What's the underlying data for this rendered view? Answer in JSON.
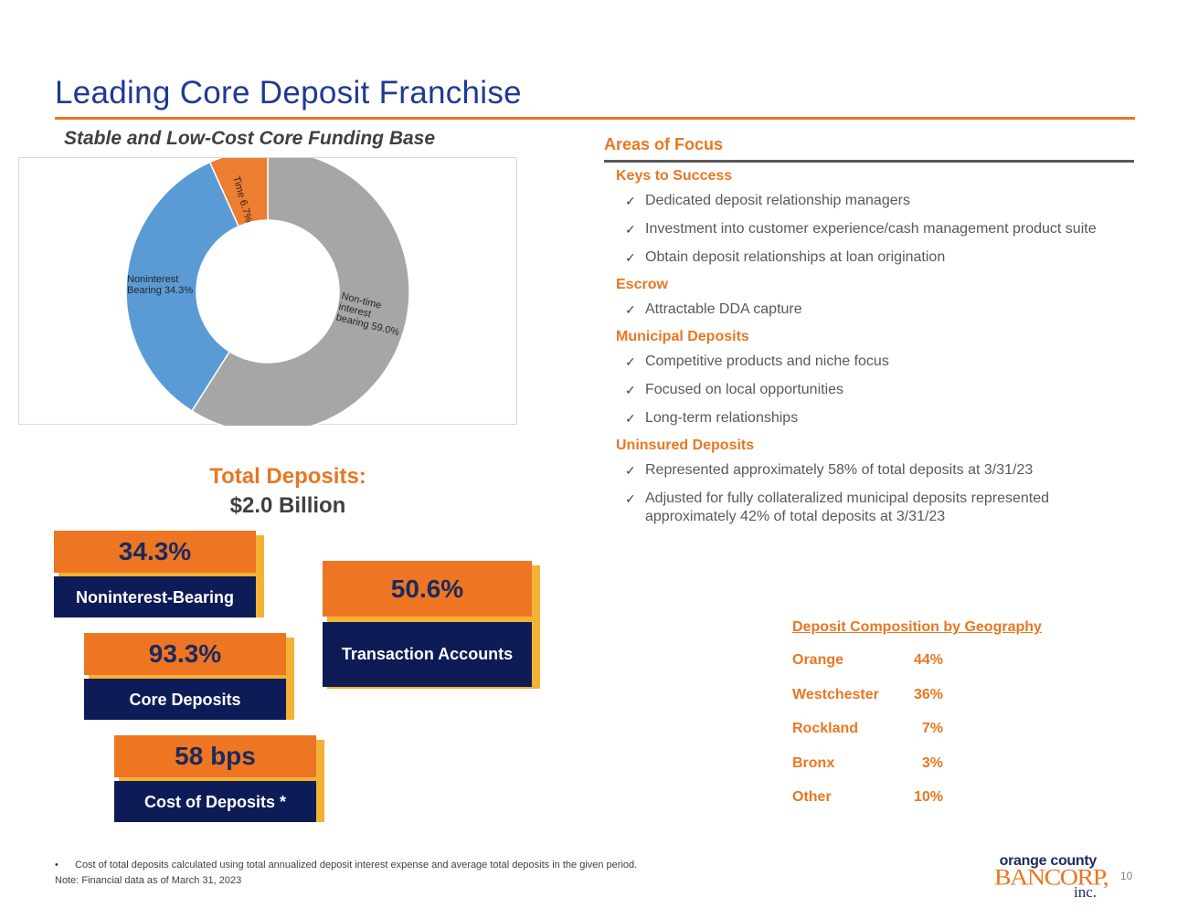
{
  "title": "Leading Core Deposit Franchise",
  "subtitle": "Stable and Low-Cost Core Funding Base",
  "colors": {
    "accent": "#e87722",
    "navy": "#0d1b56",
    "title_blue": "#1f3a93",
    "shadow_gold": "#f2b233",
    "slice_gray": "#a6a6a6",
    "slice_blue": "#5b9bd5",
    "slice_orange": "#ed7d31"
  },
  "chart_data": {
    "type": "pie",
    "variant": "donut",
    "series": [
      {
        "name": "Non-time interest bearing",
        "value": 59.0,
        "label_lines": [
          "Non-time",
          "interest",
          "bearing 59.0%"
        ],
        "color": "#a6a6a6"
      },
      {
        "name": "Noninterest Bearing",
        "value": 34.3,
        "label_lines": [
          "Noninterest",
          "Bearing 34.3%"
        ],
        "color": "#5b9bd5"
      },
      {
        "name": "Time",
        "value": 6.7,
        "label_lines": [
          "Time 6.7%"
        ],
        "color": "#ed7d31"
      }
    ]
  },
  "total": {
    "label": "Total Deposits:",
    "value": "$2.0 Billion"
  },
  "stats": [
    {
      "value": "34.3%",
      "label": "Noninterest-Bearing"
    },
    {
      "value": "93.3%",
      "label": "Core Deposits"
    },
    {
      "value": "58 bps",
      "label": "Cost of Deposits *"
    },
    {
      "value": "50.6%",
      "label": "Transaction Accounts"
    }
  ],
  "areas": {
    "title": "Areas of Focus",
    "check_glyph": "✓",
    "sections": [
      {
        "heading": "Keys to Success",
        "items": [
          "Dedicated deposit relationship managers",
          "Investment into customer experience/cash management product suite",
          "Obtain deposit relationships at loan origination"
        ]
      },
      {
        "heading": "Escrow",
        "items": [
          "Attractable DDA capture"
        ]
      },
      {
        "heading": "Municipal Deposits",
        "items": [
          "Competitive products and niche focus",
          "Focused on local opportunities",
          "Long-term relationships"
        ]
      },
      {
        "heading": "Uninsured Deposits",
        "items": [
          "Represented approximately 58% of total deposits at 3/31/23",
          "Adjusted for fully collateralized municipal deposits represented approximately 42% of total deposits at 3/31/23"
        ]
      }
    ]
  },
  "geography": {
    "title": "Deposit Composition by Geography",
    "rows": [
      {
        "name": "Orange",
        "pct": "44%"
      },
      {
        "name": "Westchester",
        "pct": "36%"
      },
      {
        "name": "Rockland",
        "pct": "7%"
      },
      {
        "name": "Bronx",
        "pct": "3%"
      },
      {
        "name": "Other",
        "pct": "10%"
      }
    ]
  },
  "footnote": {
    "bullet": "•",
    "text": "Cost of total deposits calculated using total annualized deposit interest expense and average total deposits in the given period."
  },
  "note": "Note: Financial data as of March 31, 2023",
  "logo": {
    "line1": "orange county",
    "line2": "BANCORP,",
    "line3": "inc."
  },
  "page_number": "10"
}
